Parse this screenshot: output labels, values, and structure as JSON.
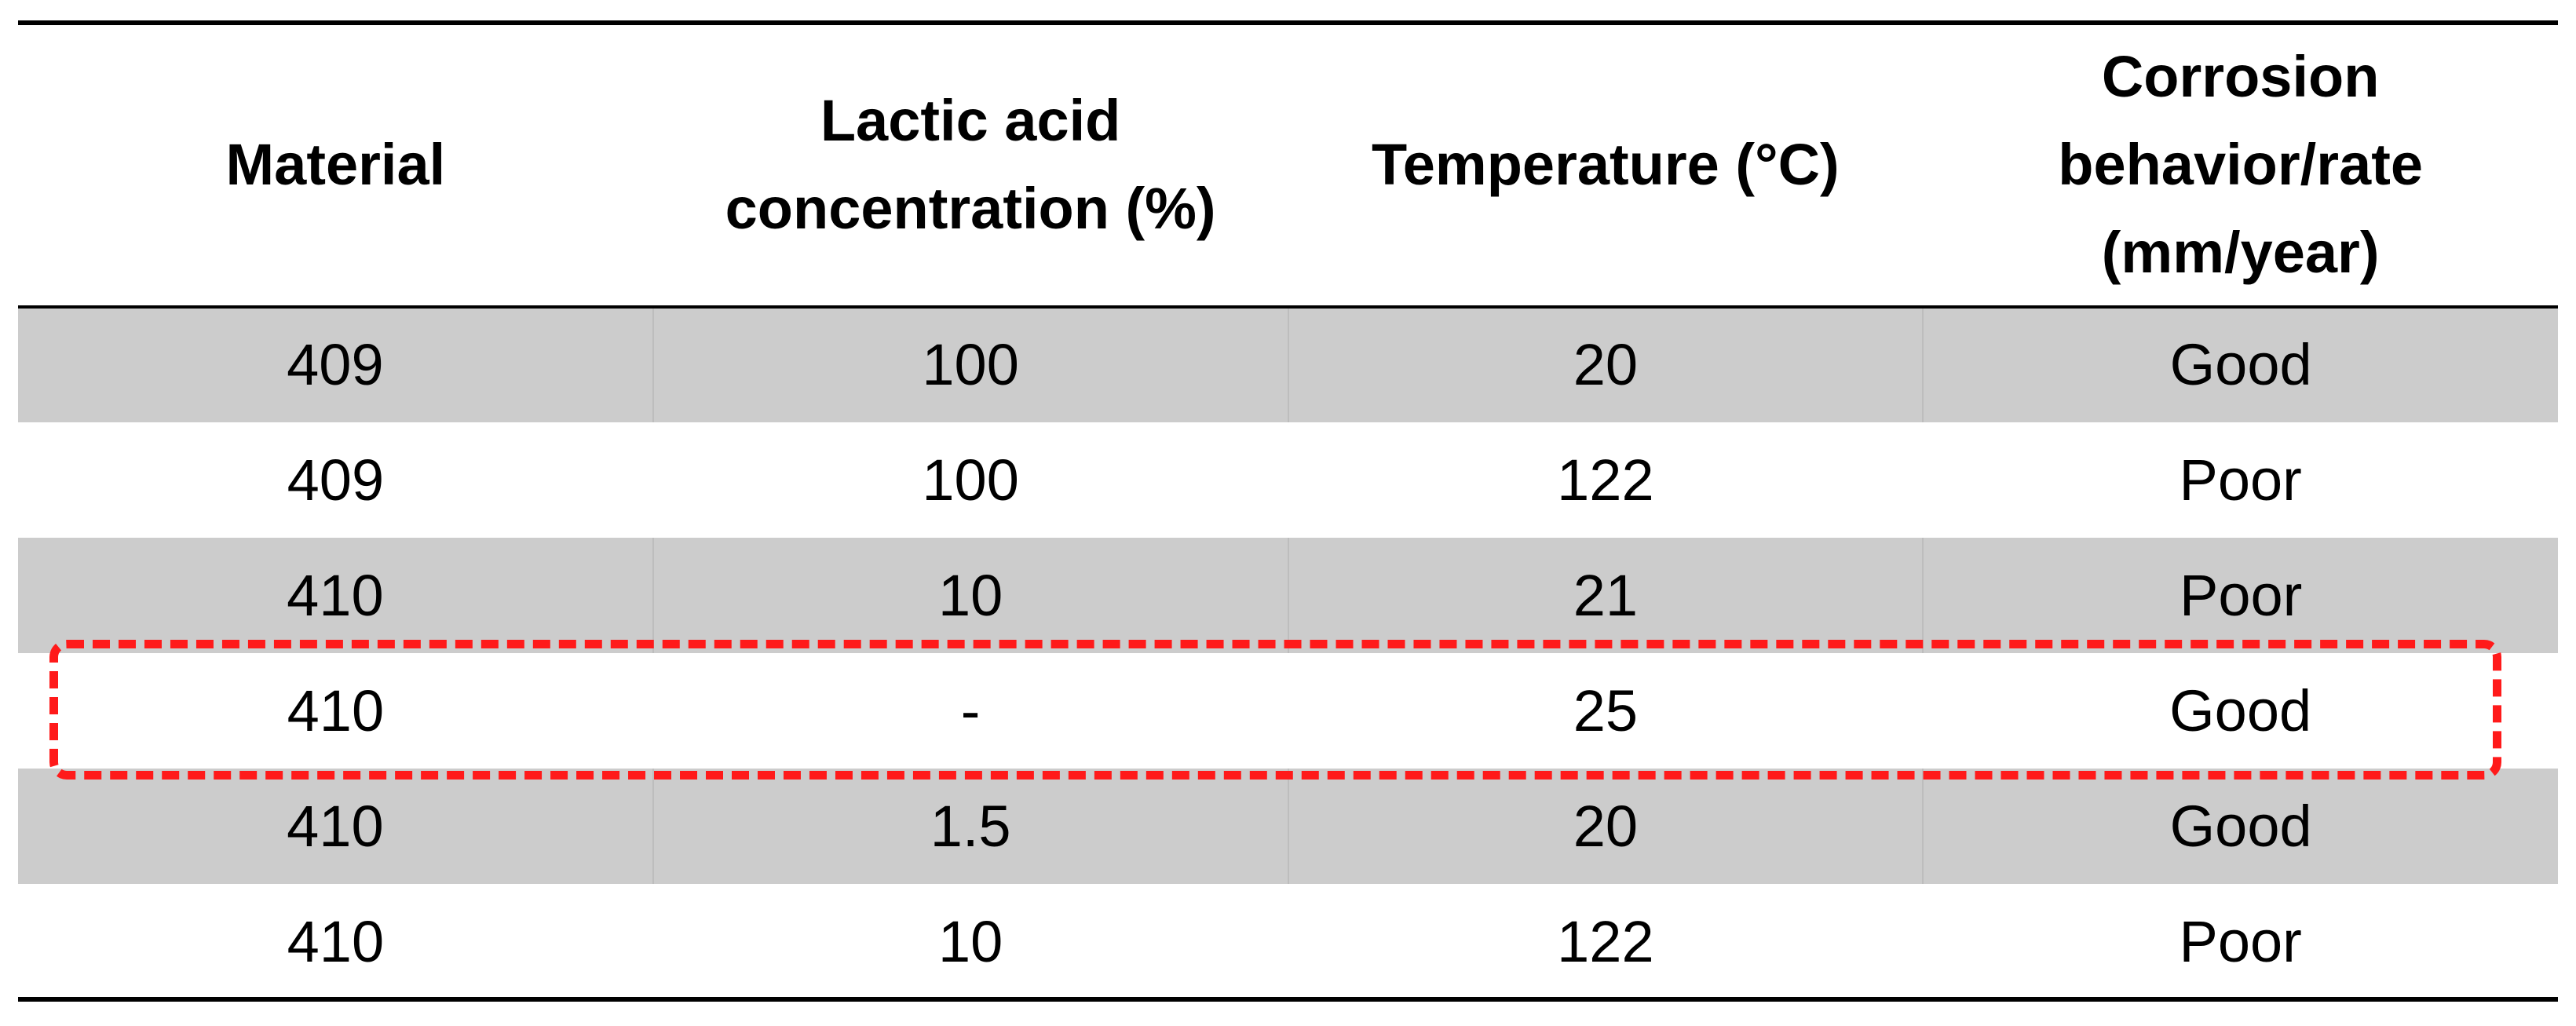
{
  "table": {
    "headers": [
      "Material",
      "Lactic acid concentration (%)",
      "Temperature (°C)",
      "Corrosion behavior/rate (mm/year)"
    ],
    "rows": [
      [
        "409",
        "100",
        "20",
        "Good"
      ],
      [
        "409",
        "100",
        "122",
        "Poor"
      ],
      [
        "410",
        "10",
        "21",
        "Poor"
      ],
      [
        "410",
        "-",
        "25",
        "Good"
      ],
      [
        "410",
        "1.5",
        "20",
        "Good"
      ],
      [
        "410",
        "10",
        "122",
        "Poor"
      ]
    ],
    "highlighted_row_index": 3
  },
  "colors": {
    "shaded_row": "#cccccc",
    "highlight_dash": "#ff1a1a",
    "rule": "#000000"
  }
}
